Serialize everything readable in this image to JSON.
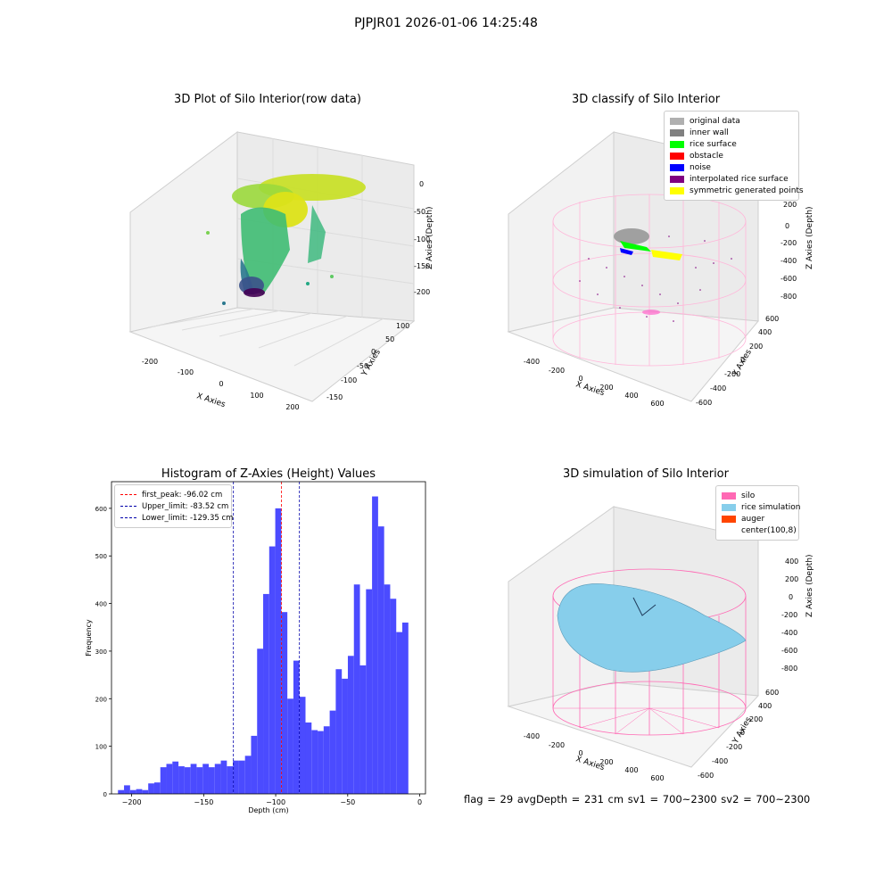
{
  "suptitle": "PJPJR01 2026-01-06 14:25:48",
  "status_text": "flag = 29  avgDepth = 231 cm  sv1 = 700~2300  sv2 = 700~2300",
  "colors": {
    "histogram_bar": "#4b4bff",
    "silo_wire": "#ff69b4",
    "rice_surface": "#87cefa",
    "first_peak_line": "#ff0000",
    "limit_line": "#0000aa"
  },
  "chart_data": [
    {
      "type": "scatter",
      "subtype": "3d",
      "title": "3D Plot of Silo Interior(row data)",
      "xlabel": "X Axies",
      "ylabel": "Y Axies",
      "zlabel": "Z Axies (Depth)",
      "x_ticks": [
        "-200",
        "-100",
        "0",
        "100",
        "200"
      ],
      "y_ticks": [
        "-150",
        "-100",
        "-50",
        "0",
        "50",
        "100"
      ],
      "z_ticks": [
        "0",
        "-50",
        "-100",
        "-150",
        "-200"
      ],
      "xlim": [
        -230,
        230
      ],
      "ylim": [
        -170,
        130
      ],
      "zlim": [
        -220,
        10
      ],
      "colormap": "viridis"
    },
    {
      "type": "scatter",
      "subtype": "3d",
      "title": "3D classify of Silo Interior",
      "xlabel": "X Axies",
      "ylabel": "Y Axies",
      "zlabel": "Z Axies (Depth)",
      "x_ticks": [
        "-400",
        "-200",
        "0",
        "200",
        "400",
        "600"
      ],
      "y_ticks": [
        "-600",
        "-400",
        "-200",
        "0",
        "200",
        "400",
        "600"
      ],
      "z_ticks": [
        "200",
        "0",
        "-200",
        "-400",
        "-600",
        "-800"
      ],
      "legend": [
        {
          "label": "original data",
          "color": "#b0b0b0"
        },
        {
          "label": "inner wall",
          "color": "#808080"
        },
        {
          "label": "rice surface",
          "color": "#00ff00"
        },
        {
          "label": "obstacle",
          "color": "#ff0000"
        },
        {
          "label": "noise",
          "color": "#0000ff"
        },
        {
          "label": "interpolated rice surface",
          "color": "#800080"
        },
        {
          "label": "symmetric generated points",
          "color": "#ffff00"
        }
      ],
      "legend_position": "upper-right"
    },
    {
      "type": "bar",
      "subtype": "histogram",
      "title": "Histogram of Z-Axies (Height) Values",
      "xlabel": "Depth (cm)",
      "ylabel": "Frequency",
      "xlim": [
        -214,
        4
      ],
      "ylim": [
        0,
        656
      ],
      "x_ticks": [
        -200,
        -150,
        -100,
        -50,
        0
      ],
      "y_ticks": [
        0,
        100,
        200,
        300,
        400,
        500,
        600
      ],
      "bin_start": -209.5,
      "bin_width": 4.2,
      "values": [
        8,
        18,
        8,
        10,
        8,
        22,
        24,
        56,
        63,
        68,
        58,
        56,
        63,
        56,
        63,
        56,
        63,
        70,
        58,
        70,
        70,
        80,
        122,
        305,
        420,
        520,
        600,
        382,
        200,
        280,
        204,
        150,
        134,
        132,
        142,
        175,
        262,
        242,
        290,
        440,
        270,
        430,
        625,
        562,
        440,
        410,
        340,
        360
      ],
      "vlines": [
        {
          "label": "first_peak: -96.02 cm",
          "x": -96.02,
          "color": "#ff0000"
        },
        {
          "label": "Upper_limit: -83.52 cm",
          "x": -83.52,
          "color": "#0000aa"
        },
        {
          "label": "Lower_limit: -129.35 cm",
          "x": -129.35,
          "color": "#0000aa"
        }
      ],
      "legend_position": "upper-left"
    },
    {
      "type": "area",
      "subtype": "3d-surface",
      "title": "3D simulation of Silo Interior",
      "xlabel": "X Axies",
      "ylabel": "Y Axies",
      "zlabel": "Z Axies (Depth)",
      "x_ticks": [
        "-400",
        "-200",
        "0",
        "200",
        "400",
        "600"
      ],
      "y_ticks": [
        "-600",
        "-400",
        "-200",
        "0",
        "200",
        "400",
        "600"
      ],
      "z_ticks": [
        "400",
        "200",
        "0",
        "-200",
        "-400",
        "-600",
        "-800"
      ],
      "legend": [
        {
          "label": "silo",
          "color": "#ff69b4"
        },
        {
          "label": "rice simulation",
          "color": "#87ceeb"
        },
        {
          "label": "auger",
          "color": "#ff4500"
        },
        {
          "label": "center(100,8)",
          "color": "#ffffff"
        }
      ],
      "legend_position": "upper-right"
    }
  ]
}
